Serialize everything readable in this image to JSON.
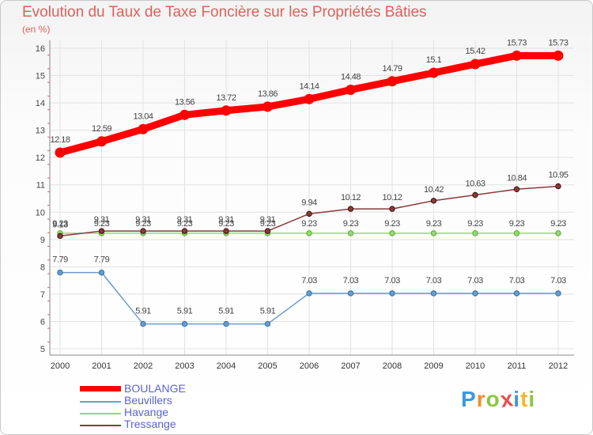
{
  "header": {
    "title": "Evolution du Taux de Taxe Foncière sur les Propriétés Bâties",
    "unit": "(en %)"
  },
  "chart_data": {
    "type": "line",
    "title": "Evolution du Taux de Taxe Foncière sur les Propriétés Bâties",
    "ylabel": "(en %)",
    "xlabel": "",
    "x": [
      "2000",
      "2001",
      "2002",
      "2003",
      "2004",
      "2005",
      "2006",
      "2007",
      "2008",
      "2009",
      "2010",
      "2011",
      "2012"
    ],
    "yticks": [
      "5",
      "6",
      "7",
      "8",
      "9",
      "10",
      "11",
      "12",
      "13",
      "14",
      "15",
      "16"
    ],
    "ylim": [
      5,
      16
    ],
    "legend_position": "bottom-left",
    "series": [
      {
        "name": "BOULANGE",
        "color": "#ff0000",
        "values": [
          12.18,
          12.59,
          13.04,
          13.56,
          13.72,
          13.86,
          14.14,
          14.48,
          14.79,
          15.1,
          15.42,
          15.73,
          15.73
        ],
        "labels": [
          "12.18",
          "12.59",
          "13.04",
          "13.56",
          "13.72",
          "13.86",
          "14.14",
          "14.48",
          "14.79",
          "15.1",
          "15.42",
          "15.73",
          "15.73"
        ]
      },
      {
        "name": "Beuvillers",
        "color": "#6a9ccd",
        "values": [
          7.79,
          7.79,
          5.91,
          5.91,
          5.91,
          5.91,
          7.03,
          7.03,
          7.03,
          7.03,
          7.03,
          7.03,
          7.03
        ],
        "labels": [
          "7.79",
          "7.79",
          "5.91",
          "5.91",
          "5.91",
          "5.91",
          "7.03",
          "7.03",
          "7.03",
          "7.03",
          "7.03",
          "7.03",
          "7.03"
        ]
      },
      {
        "name": "Havange",
        "color": "#97d76b",
        "values": [
          9.23,
          9.23,
          9.23,
          9.23,
          9.23,
          9.23,
          9.23,
          9.23,
          9.23,
          9.23,
          9.23,
          9.23,
          9.23
        ],
        "labels": [
          "9.23",
          "9.23",
          "9.23",
          "9.23",
          "9.23",
          "9.23",
          "9.23",
          "9.23",
          "9.23",
          "9.23",
          "9.23",
          "9.23",
          "9.23"
        ]
      },
      {
        "name": "Tressange",
        "color": "#8a3a3a",
        "values": [
          9.13,
          9.31,
          9.31,
          9.31,
          9.31,
          9.31,
          9.94,
          10.12,
          10.12,
          10.42,
          10.63,
          10.84,
          10.95
        ],
        "labels": [
          "9.13",
          "9.31",
          "9.31",
          "9.31",
          "9.31",
          "9.31",
          "9.94",
          "10.12",
          "10.12",
          "10.42",
          "10.63",
          "10.84",
          "10.95"
        ]
      }
    ]
  },
  "logo": {
    "text": "Proxiti",
    "letters": [
      "P",
      "r",
      "o",
      "x",
      "i",
      "t",
      "i"
    ]
  }
}
